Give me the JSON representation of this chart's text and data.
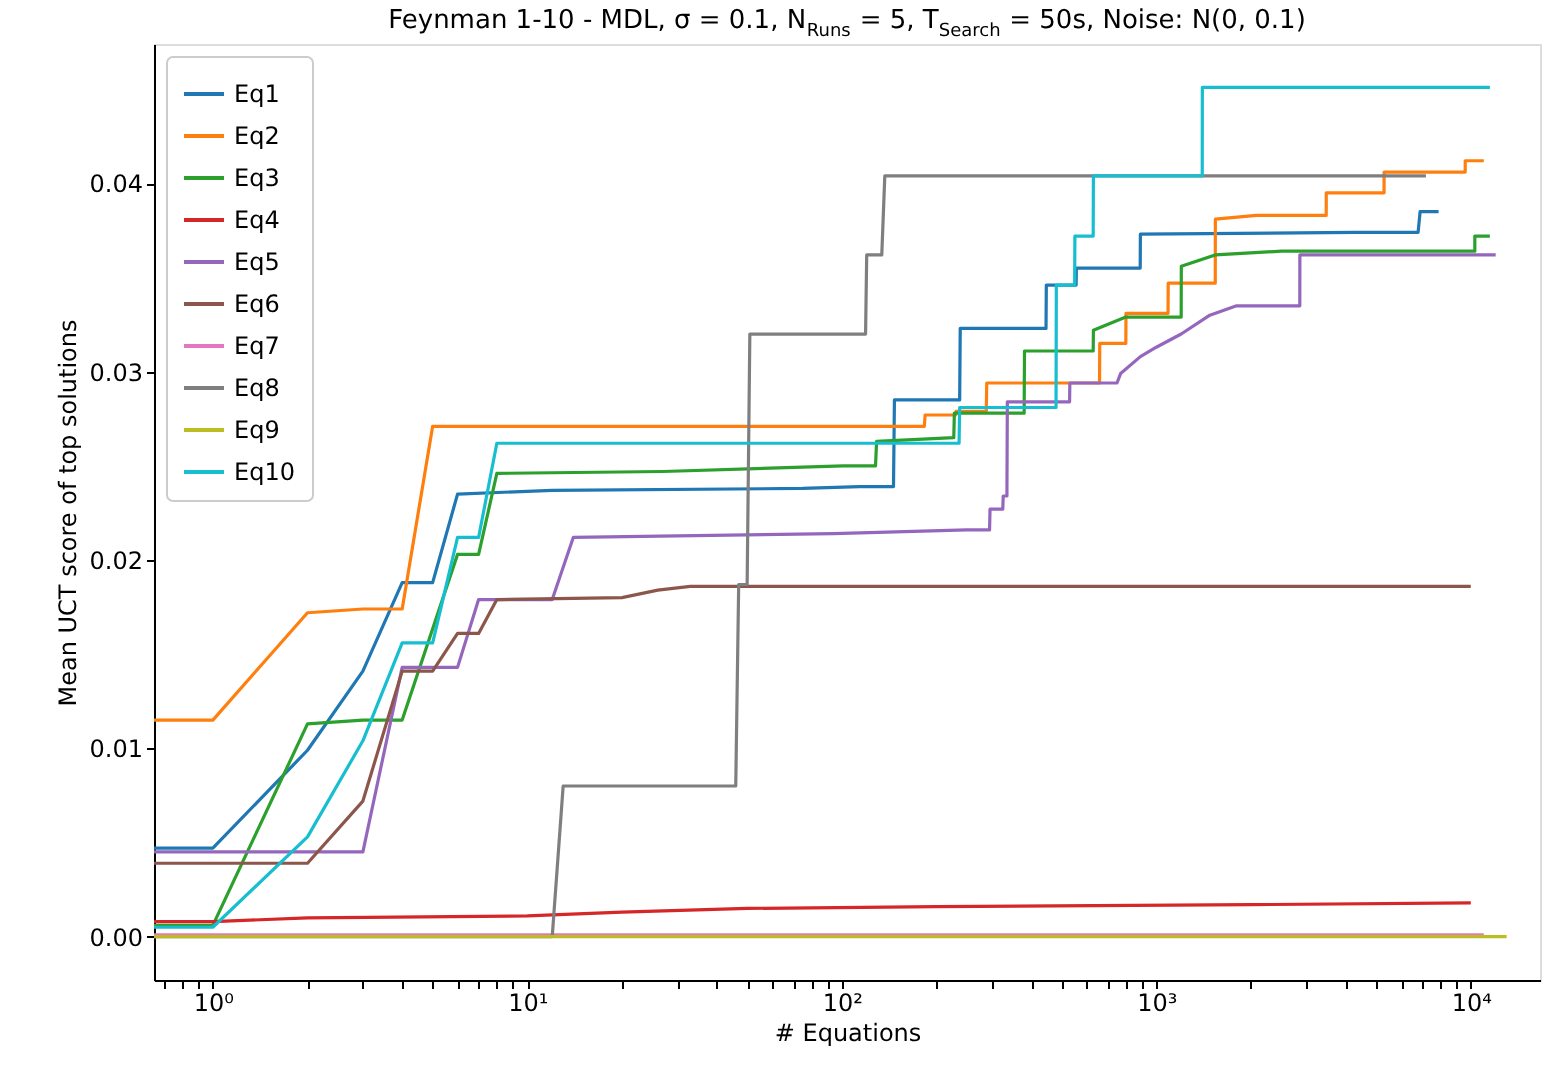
{
  "chart_data": {
    "type": "line",
    "title": "Feynman 1-10 - MDL, σ = 0.1, N$_{Runs}$ = 5, T$_{Search}$ = 50s, Noise: N(0, 0.1)",
    "xlabel": "# Equations",
    "ylabel": "Mean UCT score of top solutions",
    "log": "x",
    "grid": false,
    "legend": "top left",
    "line_style": "solid",
    "marker": "none",
    "xlim": [
      0.65,
      16600
    ],
    "ylim": [
      -0.0023,
      0.0474
    ],
    "xticks": [
      {
        "value": 1,
        "label": "10⁰"
      },
      {
        "value": 10,
        "label": "10¹"
      },
      {
        "value": 100,
        "label": "10²"
      },
      {
        "value": 1000,
        "label": "10³"
      },
      {
        "value": 10000,
        "label": "10⁴"
      },
      {
        "value": 0.7,
        "label": null
      },
      {
        "value": 0.8,
        "label": null
      },
      {
        "value": 0.9,
        "label": null
      },
      {
        "value": 2,
        "label": null
      },
      {
        "value": 3,
        "label": null
      },
      {
        "value": 4,
        "label": null
      },
      {
        "value": 5,
        "label": null
      },
      {
        "value": 6,
        "label": null
      },
      {
        "value": 7,
        "label": null
      },
      {
        "value": 8,
        "label": null
      },
      {
        "value": 9,
        "label": null
      },
      {
        "value": 20,
        "label": null
      },
      {
        "value": 30,
        "label": null
      },
      {
        "value": 40,
        "label": null
      },
      {
        "value": 50,
        "label": null
      },
      {
        "value": 60,
        "label": null
      },
      {
        "value": 70,
        "label": null
      },
      {
        "value": 80,
        "label": null
      },
      {
        "value": 90,
        "label": null
      },
      {
        "value": 200,
        "label": null
      },
      {
        "value": 300,
        "label": null
      },
      {
        "value": 400,
        "label": null
      },
      {
        "value": 500,
        "label": null
      },
      {
        "value": 600,
        "label": null
      },
      {
        "value": 700,
        "label": null
      },
      {
        "value": 800,
        "label": null
      },
      {
        "value": 900,
        "label": null
      },
      {
        "value": 2000,
        "label": null
      },
      {
        "value": 3000,
        "label": null
      },
      {
        "value": 4000,
        "label": null
      },
      {
        "value": 5000,
        "label": null
      },
      {
        "value": 6000,
        "label": null
      },
      {
        "value": 7000,
        "label": null
      },
      {
        "value": 8000,
        "label": null
      },
      {
        "value": 9000,
        "label": null
      }
    ],
    "yticks": [
      {
        "value": 0,
        "label": "0.00"
      },
      {
        "value": 0.01,
        "label": "0.01"
      },
      {
        "value": 0.02,
        "label": "0.02"
      },
      {
        "value": 0.03,
        "label": "0.03"
      },
      {
        "value": 0.04,
        "label": "0.04"
      }
    ],
    "series": [
      {
        "name": "Eq1",
        "color": "#1f77b4",
        "x": [
          0.65,
          1,
          2,
          3,
          4,
          5,
          6,
          12,
          75,
          114,
          146,
          147,
          237,
          238,
          446,
          447,
          556,
          557,
          889,
          890,
          4300,
          6800,
          6900,
          7900
        ],
        "values": [
          0.0047,
          0.0047,
          0.0099,
          0.0141,
          0.0188,
          0.0188,
          0.0235,
          0.0237,
          0.0238,
          0.0239,
          0.0239,
          0.0285,
          0.0285,
          0.0323,
          0.0323,
          0.0346,
          0.0346,
          0.0355,
          0.0355,
          0.0373,
          0.0374,
          0.0374,
          0.0385,
          0.0385
        ]
      },
      {
        "name": "Eq2",
        "color": "#ff7f0e",
        "x": [
          0.65,
          1,
          2,
          3,
          4,
          5,
          183,
          184,
          230,
          231,
          288,
          289,
          660,
          661,
          800,
          801,
          1090,
          1091,
          1540,
          1541,
          2080,
          3470,
          3471,
          5300,
          5301,
          9600,
          9601,
          11000
        ],
        "values": [
          0.0115,
          0.0115,
          0.0172,
          0.0174,
          0.0174,
          0.0271,
          0.0271,
          0.0277,
          0.0277,
          0.0279,
          0.0279,
          0.0294,
          0.0294,
          0.0315,
          0.0315,
          0.0331,
          0.0331,
          0.0347,
          0.0347,
          0.0381,
          0.0383,
          0.0383,
          0.0395,
          0.0395,
          0.0406,
          0.0406,
          0.0412,
          0.0412
        ]
      },
      {
        "name": "Eq3",
        "color": "#2ca02c",
        "x": [
          0.65,
          1,
          2,
          3,
          4,
          6,
          7,
          8,
          27,
          101,
          128,
          129,
          227,
          228,
          380,
          381,
          630,
          631,
          800,
          1200,
          1201,
          1540,
          2500,
          10300,
          10301,
          11500
        ],
        "values": [
          0.0006,
          0.0006,
          0.0113,
          0.0115,
          0.0115,
          0.0203,
          0.0203,
          0.0246,
          0.0247,
          0.025,
          0.025,
          0.0263,
          0.0265,
          0.0278,
          0.0278,
          0.0311,
          0.0311,
          0.0322,
          0.0329,
          0.0329,
          0.0356,
          0.0362,
          0.0364,
          0.0364,
          0.0372,
          0.0372
        ]
      },
      {
        "name": "Eq4",
        "color": "#d62728",
        "x": [
          0.65,
          1,
          2,
          10,
          20,
          50,
          200,
          2000,
          10000
        ],
        "values": [
          0.0008,
          0.0008,
          0.001,
          0.0011,
          0.0013,
          0.0015,
          0.0016,
          0.0017,
          0.0018
        ]
      },
      {
        "name": "Eq5",
        "color": "#9467bd",
        "x": [
          0.65,
          1,
          2,
          3,
          4,
          5,
          6,
          7,
          12,
          14,
          94,
          250,
          295,
          296,
          325,
          326,
          335,
          336,
          530,
          531,
          750,
          770,
          890,
          1000,
          1200,
          1480,
          1800,
          2860,
          2861,
          12000
        ],
        "values": [
          0.0045,
          0.0045,
          0.0045,
          0.0045,
          0.0143,
          0.0143,
          0.0143,
          0.0179,
          0.0179,
          0.0212,
          0.0214,
          0.0216,
          0.0216,
          0.0227,
          0.0227,
          0.0234,
          0.0234,
          0.0284,
          0.0284,
          0.0294,
          0.0294,
          0.0299,
          0.0308,
          0.0313,
          0.032,
          0.033,
          0.0335,
          0.0335,
          0.0362,
          0.0362
        ]
      },
      {
        "name": "Eq6",
        "color": "#8c564b",
        "x": [
          0.65,
          1,
          2,
          3,
          4,
          5,
          6,
          7,
          8,
          20,
          26,
          33,
          10000
        ],
        "values": [
          0.0039,
          0.0039,
          0.0039,
          0.0072,
          0.0141,
          0.0141,
          0.0161,
          0.0161,
          0.0179,
          0.018,
          0.0184,
          0.0186,
          0.0186
        ]
      },
      {
        "name": "Eq7",
        "color": "#e377c2",
        "x": [
          0.65,
          11000
        ],
        "values": [
          0.0001,
          0.0001
        ]
      },
      {
        "name": "Eq8",
        "color": "#7f7f7f",
        "x": [
          0.65,
          12,
          13,
          46,
          47,
          50,
          51,
          119,
          120,
          134,
          137,
          7200
        ],
        "values": [
          0.0,
          0.0,
          0.008,
          0.008,
          0.0187,
          0.0187,
          0.032,
          0.032,
          0.0362,
          0.0362,
          0.0404,
          0.0404
        ]
      },
      {
        "name": "Eq9",
        "color": "#bcbd22",
        "x": [
          0.65,
          13000
        ],
        "values": [
          0.0,
          0.0
        ]
      },
      {
        "name": "Eq10",
        "color": "#17becf",
        "x": [
          0.65,
          1,
          2,
          3,
          4,
          5,
          6,
          7,
          8,
          236,
          237,
          480,
          481,
          550,
          551,
          630,
          631,
          1400,
          1401,
          11500
        ],
        "values": [
          0.0005,
          0.0005,
          0.0053,
          0.0104,
          0.0156,
          0.0156,
          0.0212,
          0.0212,
          0.0262,
          0.0262,
          0.0281,
          0.0281,
          0.0346,
          0.0346,
          0.0372,
          0.0372,
          0.0404,
          0.0404,
          0.0451,
          0.0451
        ]
      }
    ]
  }
}
